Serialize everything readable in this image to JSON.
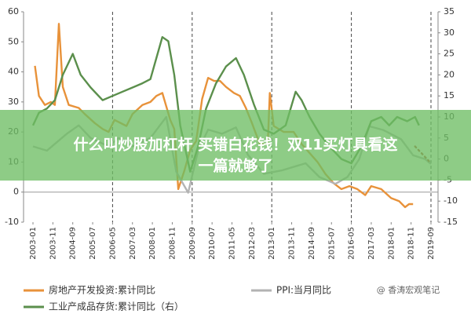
{
  "chart_data": {
    "type": "line",
    "xlim": [
      "2003-01",
      "2019-09"
    ],
    "xticks": [
      "2003-01",
      "2003-11",
      "2004-09",
      "2005-07",
      "2006-05",
      "2007-03",
      "2008-01",
      "2008-11",
      "2009-09",
      "2010-07",
      "2011-05",
      "2012-03",
      "2013-01",
      "2013-11",
      "2014-09",
      "2015-07",
      "2016-05",
      "2017-03",
      "2018-01",
      "2018-11",
      "2019-09"
    ],
    "ylim": [
      -10,
      60
    ],
    "yticks": [
      -10,
      0,
      10,
      20,
      30,
      40,
      50,
      60
    ],
    "y2lim": [
      -15,
      35
    ],
    "y2ticks": [
      -15,
      -10,
      -5,
      0,
      5,
      10,
      15,
      20,
      25,
      30,
      35
    ],
    "series": [
      {
        "name": "房地产开发投资:累计同比",
        "color": "#e8923a",
        "x": [
          "2003-02",
          "2003-04",
          "2003-07",
          "2003-10",
          "2003-12",
          "2004-02",
          "2004-04",
          "2004-07",
          "2004-12",
          "2005-03",
          "2005-08",
          "2005-12",
          "2006-03",
          "2006-06",
          "2006-12",
          "2007-03",
          "2007-08",
          "2007-12",
          "2008-03",
          "2008-06",
          "2008-10",
          "2008-12",
          "2009-02",
          "2009-05",
          "2009-08",
          "2009-11",
          "2010-02",
          "2010-05",
          "2010-08",
          "2010-11",
          "2011-02",
          "2011-06",
          "2011-09",
          "2011-12",
          "2012-03",
          "2012-07",
          "2012-11",
          "2012-12",
          "2013-02",
          "2013-07",
          "2013-12",
          "2014-04",
          "2014-08",
          "2014-12",
          "2015-04",
          "2015-08",
          "2015-12",
          "2016-04",
          "2016-08",
          "2016-12",
          "2017-03",
          "2017-08",
          "2018-01",
          "2018-05",
          "2018-08",
          "2018-10",
          "2018-12"
        ],
        "values": [
          42,
          32,
          29,
          30,
          29,
          56,
          35,
          29,
          28,
          26,
          23,
          21,
          20,
          24,
          22,
          26,
          29,
          30,
          32,
          33,
          24,
          21,
          1,
          7,
          14,
          17,
          31,
          38,
          37,
          37,
          35,
          33,
          32,
          28,
          23,
          16,
          16,
          33,
          22,
          20,
          20,
          16,
          13,
          10,
          6,
          3,
          1,
          2,
          1,
          -1,
          2,
          1,
          -2,
          -3,
          -5,
          -4,
          -4
        ]
      },
      {
        "name": "PPI:当月同比",
        "color": "#b3b3b3",
        "axis": "y2",
        "x": [
          "2003-01",
          "2003-08",
          "2004-06",
          "2004-12",
          "2005-06",
          "2006-03",
          "2006-08",
          "2007-03",
          "2007-12",
          "2008-08",
          "2009-01",
          "2009-07",
          "2009-12",
          "2010-05",
          "2010-12",
          "2011-07",
          "2012-01",
          "2012-09",
          "2013-06",
          "2014-06",
          "2015-01",
          "2015-09",
          "2016-03",
          "2016-09",
          "2017-02",
          "2017-09",
          "2018-06",
          "2018-12",
          "2019-06",
          "2019-09"
        ],
        "values": [
          3,
          2,
          6,
          8,
          5,
          3,
          5,
          3,
          5,
          10,
          -3,
          -8,
          2,
          7,
          6,
          7.5,
          1,
          -3.5,
          -2.7,
          -1,
          -4.3,
          -5.9,
          -4.3,
          0,
          7.8,
          6.9,
          4.7,
          0.9,
          0,
          -1.2
        ]
      },
      {
        "name": "工业产成品存货:累计同比（右）",
        "color": "#5b8f4c",
        "axis": "y2",
        "x": [
          "2003-01",
          "2003-04",
          "2003-08",
          "2003-12",
          "2004-04",
          "2004-09",
          "2005-01",
          "2005-06",
          "2005-12",
          "2006-05",
          "2006-10",
          "2007-03",
          "2007-08",
          "2007-12",
          "2008-03",
          "2008-06",
          "2008-09",
          "2008-12",
          "2009-03",
          "2009-08",
          "2009-12",
          "2010-04",
          "2010-09",
          "2011-02",
          "2011-07",
          "2011-11",
          "2012-04",
          "2012-09",
          "2013-02",
          "2013-08",
          "2014-01",
          "2014-04",
          "2014-08",
          "2015-01",
          "2015-06",
          "2015-12",
          "2016-05",
          "2016-10",
          "2017-03",
          "2017-08",
          "2017-12",
          "2018-04",
          "2018-09",
          "2019-01",
          "2019-03"
        ],
        "values": [
          8,
          11,
          12,
          14,
          20,
          25,
          20,
          17,
          14,
          15,
          16,
          17,
          18,
          19,
          24,
          29,
          28,
          20,
          8,
          -3,
          3,
          12,
          18,
          22,
          24,
          20,
          13,
          7,
          6,
          8,
          16,
          14,
          10,
          6,
          3,
          0,
          -1,
          3,
          9,
          10,
          8,
          10,
          9,
          10,
          8
        ]
      },
      {
        "color": "#b5553a",
        "axis": "y2",
        "dashed": true,
        "x": [
          "2019-01",
          "2019-05",
          "2019-09"
        ],
        "values": [
          3,
          1,
          -1
        ]
      }
    ]
  },
  "watermark": "@ 香涛宏观笔记",
  "overlay": {
    "line1": "什么叫炒股加杠杆 买错白花钱！双11买灯具看这",
    "line2": "一篇就够了"
  }
}
